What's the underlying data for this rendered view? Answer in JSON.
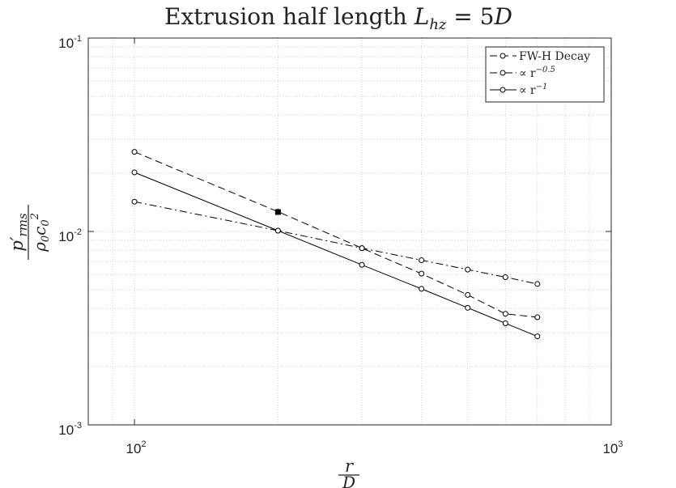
{
  "colors": {
    "background": "#ffffff",
    "axis": "#262626",
    "grid": "#cfcfcf",
    "line": "#000000"
  },
  "chart_data": {
    "type": "line",
    "title": "Extrusion half length L_hz = 5D",
    "title_parts": {
      "prefix": "Extrusion half length ",
      "var": "L",
      "sub": "hz",
      "suffix": " = 5",
      "unit": "D"
    },
    "xlabel": "r/D",
    "xlabel_parts": {
      "num": "r",
      "den": "D"
    },
    "ylabel": "p'_rms / (ρ0 c0^2)",
    "ylabel_parts": {
      "num": "p′",
      "num_sub": "rms",
      "den": "ρ",
      "den_sub1": "0",
      "den_c": "c",
      "den_sub2": "0",
      "den_sup": "2"
    },
    "x_scale": "log",
    "y_scale": "log",
    "xlim": [
      80,
      1000
    ],
    "ylim": [
      0.001,
      0.1
    ],
    "x_ticks": [
      {
        "value": 100,
        "base": "10",
        "exp": "2"
      },
      {
        "value": 1000,
        "base": "10",
        "exp": "3"
      }
    ],
    "y_ticks": [
      {
        "value": 0.001,
        "base": "10",
        "exp": "-3"
      },
      {
        "value": 0.01,
        "base": "10",
        "exp": "-2"
      },
      {
        "value": 0.1,
        "base": "10",
        "exp": "-1"
      }
    ],
    "grid": true,
    "legend_position": "top-right",
    "series": [
      {
        "name": "FW-H Decay",
        "legend_text": "FW-H Decay",
        "legend_sup": "",
        "style": "dashed",
        "x": [
          100,
          200,
          300,
          400,
          500,
          600,
          700
        ],
        "y": [
          0.0258,
          0.01265,
          0.0082,
          0.00605,
          0.0047,
          0.00375,
          0.0036
        ]
      },
      {
        "name": "∝ r^-0.5",
        "legend_text": "∝ r",
        "legend_sup": "−0.5",
        "style": "dashdot",
        "x": [
          100,
          200,
          300,
          400,
          500,
          600,
          700
        ],
        "y": [
          0.01425,
          0.0101,
          0.0082,
          0.0071,
          0.00635,
          0.0058,
          0.00535
        ]
      },
      {
        "name": "∝ r^-1",
        "legend_text": "∝ r",
        "legend_sup": "−1",
        "style": "solid",
        "x": [
          100,
          200,
          300,
          400,
          500,
          600,
          700
        ],
        "y": [
          0.0202,
          0.0101,
          0.00672,
          0.00505,
          0.00403,
          0.00335,
          0.00287
        ]
      }
    ],
    "highlight_point": {
      "x": 200,
      "y": 0.0126,
      "series": "FW-H Decay"
    }
  }
}
